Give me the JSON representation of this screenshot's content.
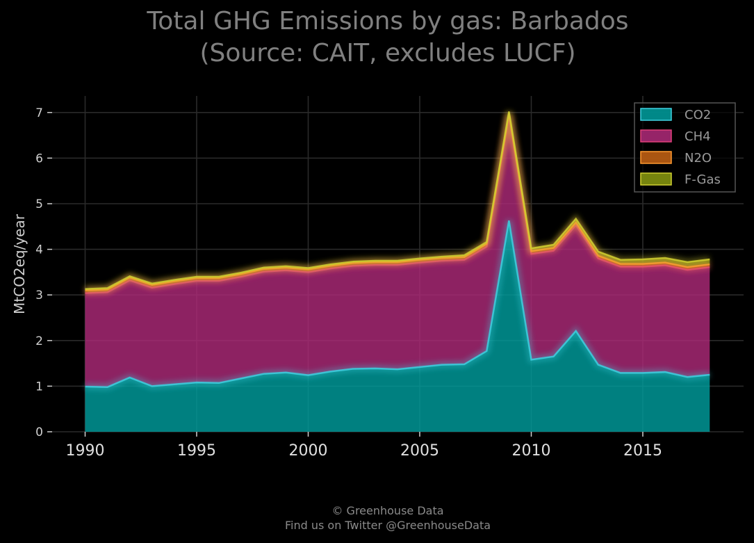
{
  "chart_data": {
    "type": "area",
    "stacked": true,
    "title": [
      "Total GHG Emissions by gas: Barbados",
      "(Source: CAIT, excludes LUCF)"
    ],
    "ylabel": "MtCO2eq/year",
    "xlabel": "",
    "xlim": [
      1990,
      2018
    ],
    "ylim": [
      0,
      7.3
    ],
    "xticks": [
      1990,
      1995,
      2000,
      2005,
      2010,
      2015
    ],
    "yticks": [
      0,
      1,
      2,
      3,
      4,
      5,
      6,
      7
    ],
    "grid": true,
    "legend_position": "top-right",
    "x": [
      1990,
      1991,
      1992,
      1993,
      1994,
      1995,
      1996,
      1997,
      1998,
      1999,
      2000,
      2001,
      2002,
      2003,
      2004,
      2005,
      2006,
      2007,
      2008,
      2009,
      2010,
      2011,
      2012,
      2013,
      2014,
      2015,
      2016,
      2017,
      2018
    ],
    "series": [
      {
        "name": "CO2",
        "color": "#00a0a0",
        "line_color": "#40d0e0",
        "values": [
          0.99,
          0.98,
          1.19,
          1.0,
          1.04,
          1.08,
          1.07,
          1.17,
          1.27,
          1.3,
          1.24,
          1.32,
          1.38,
          1.39,
          1.37,
          1.42,
          1.47,
          1.48,
          1.77,
          4.63,
          1.58,
          1.65,
          2.21,
          1.47,
          1.29,
          1.29,
          1.31,
          1.2,
          1.25
        ]
      },
      {
        "name": "CH4",
        "color": "#b02a7a",
        "line_color": "#e0407a",
        "values": [
          2.05,
          2.08,
          2.13,
          2.16,
          2.2,
          2.23,
          2.24,
          2.23,
          2.24,
          2.24,
          2.26,
          2.26,
          2.26,
          2.27,
          2.29,
          2.29,
          2.28,
          2.29,
          2.29,
          2.29,
          2.32,
          2.32,
          2.32,
          2.33,
          2.33,
          2.33,
          2.34,
          2.35,
          2.36
        ]
      },
      {
        "name": "N2O",
        "color": "#c86414",
        "line_color": "#ff9a30",
        "values": [
          0.06,
          0.06,
          0.06,
          0.06,
          0.06,
          0.06,
          0.06,
          0.06,
          0.06,
          0.06,
          0.06,
          0.06,
          0.06,
          0.06,
          0.06,
          0.06,
          0.06,
          0.06,
          0.06,
          0.06,
          0.06,
          0.06,
          0.06,
          0.06,
          0.06,
          0.06,
          0.06,
          0.06,
          0.06
        ]
      },
      {
        "name": "F-Gas",
        "color": "#8a9a10",
        "line_color": "#d0d030",
        "values": [
          0.03,
          0.03,
          0.03,
          0.03,
          0.03,
          0.03,
          0.03,
          0.03,
          0.03,
          0.03,
          0.03,
          0.03,
          0.03,
          0.03,
          0.03,
          0.03,
          0.03,
          0.04,
          0.04,
          0.04,
          0.06,
          0.07,
          0.08,
          0.09,
          0.09,
          0.1,
          0.1,
          0.11,
          0.11
        ]
      }
    ]
  },
  "footer": {
    "line1": "© Greenhouse Data",
    "line2": "Find us on Twitter @GreenhouseData"
  }
}
